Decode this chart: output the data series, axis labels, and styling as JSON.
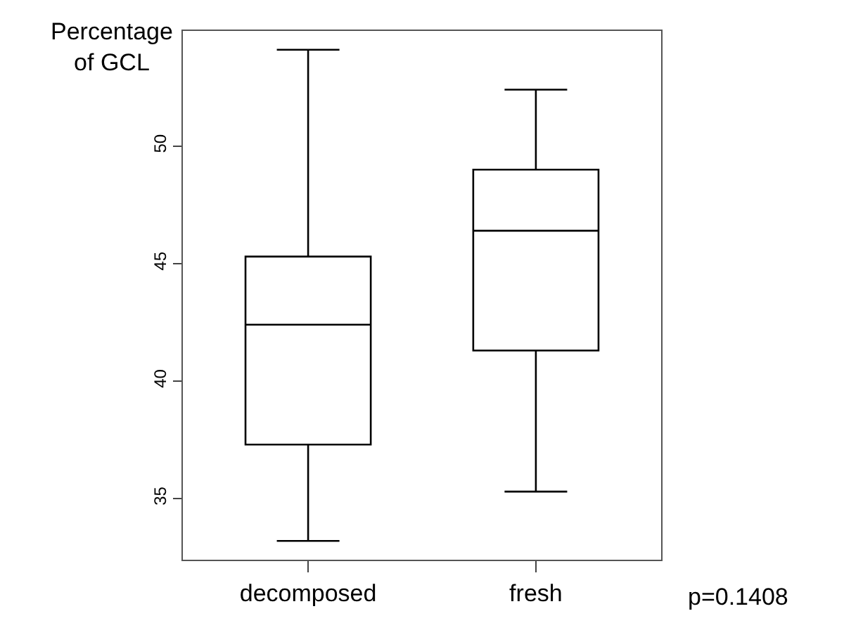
{
  "chart_data": {
    "type": "box",
    "ylabel": "Percentage of GCL",
    "categories": [
      "decomposed",
      "fresh"
    ],
    "boxes": [
      {
        "low": 33.2,
        "q1": 37.3,
        "median": 42.4,
        "q3": 45.3,
        "high": 54.1
      },
      {
        "low": 35.3,
        "q1": 41.3,
        "median": 46.4,
        "q3": 49.0,
        "high": 52.4
      }
    ],
    "color": "#000000",
    "ylim": [
      32.4,
      54.9
    ],
    "yticks": [
      35,
      40,
      45,
      50
    ],
    "annotations": [
      "p=0.1408"
    ]
  }
}
